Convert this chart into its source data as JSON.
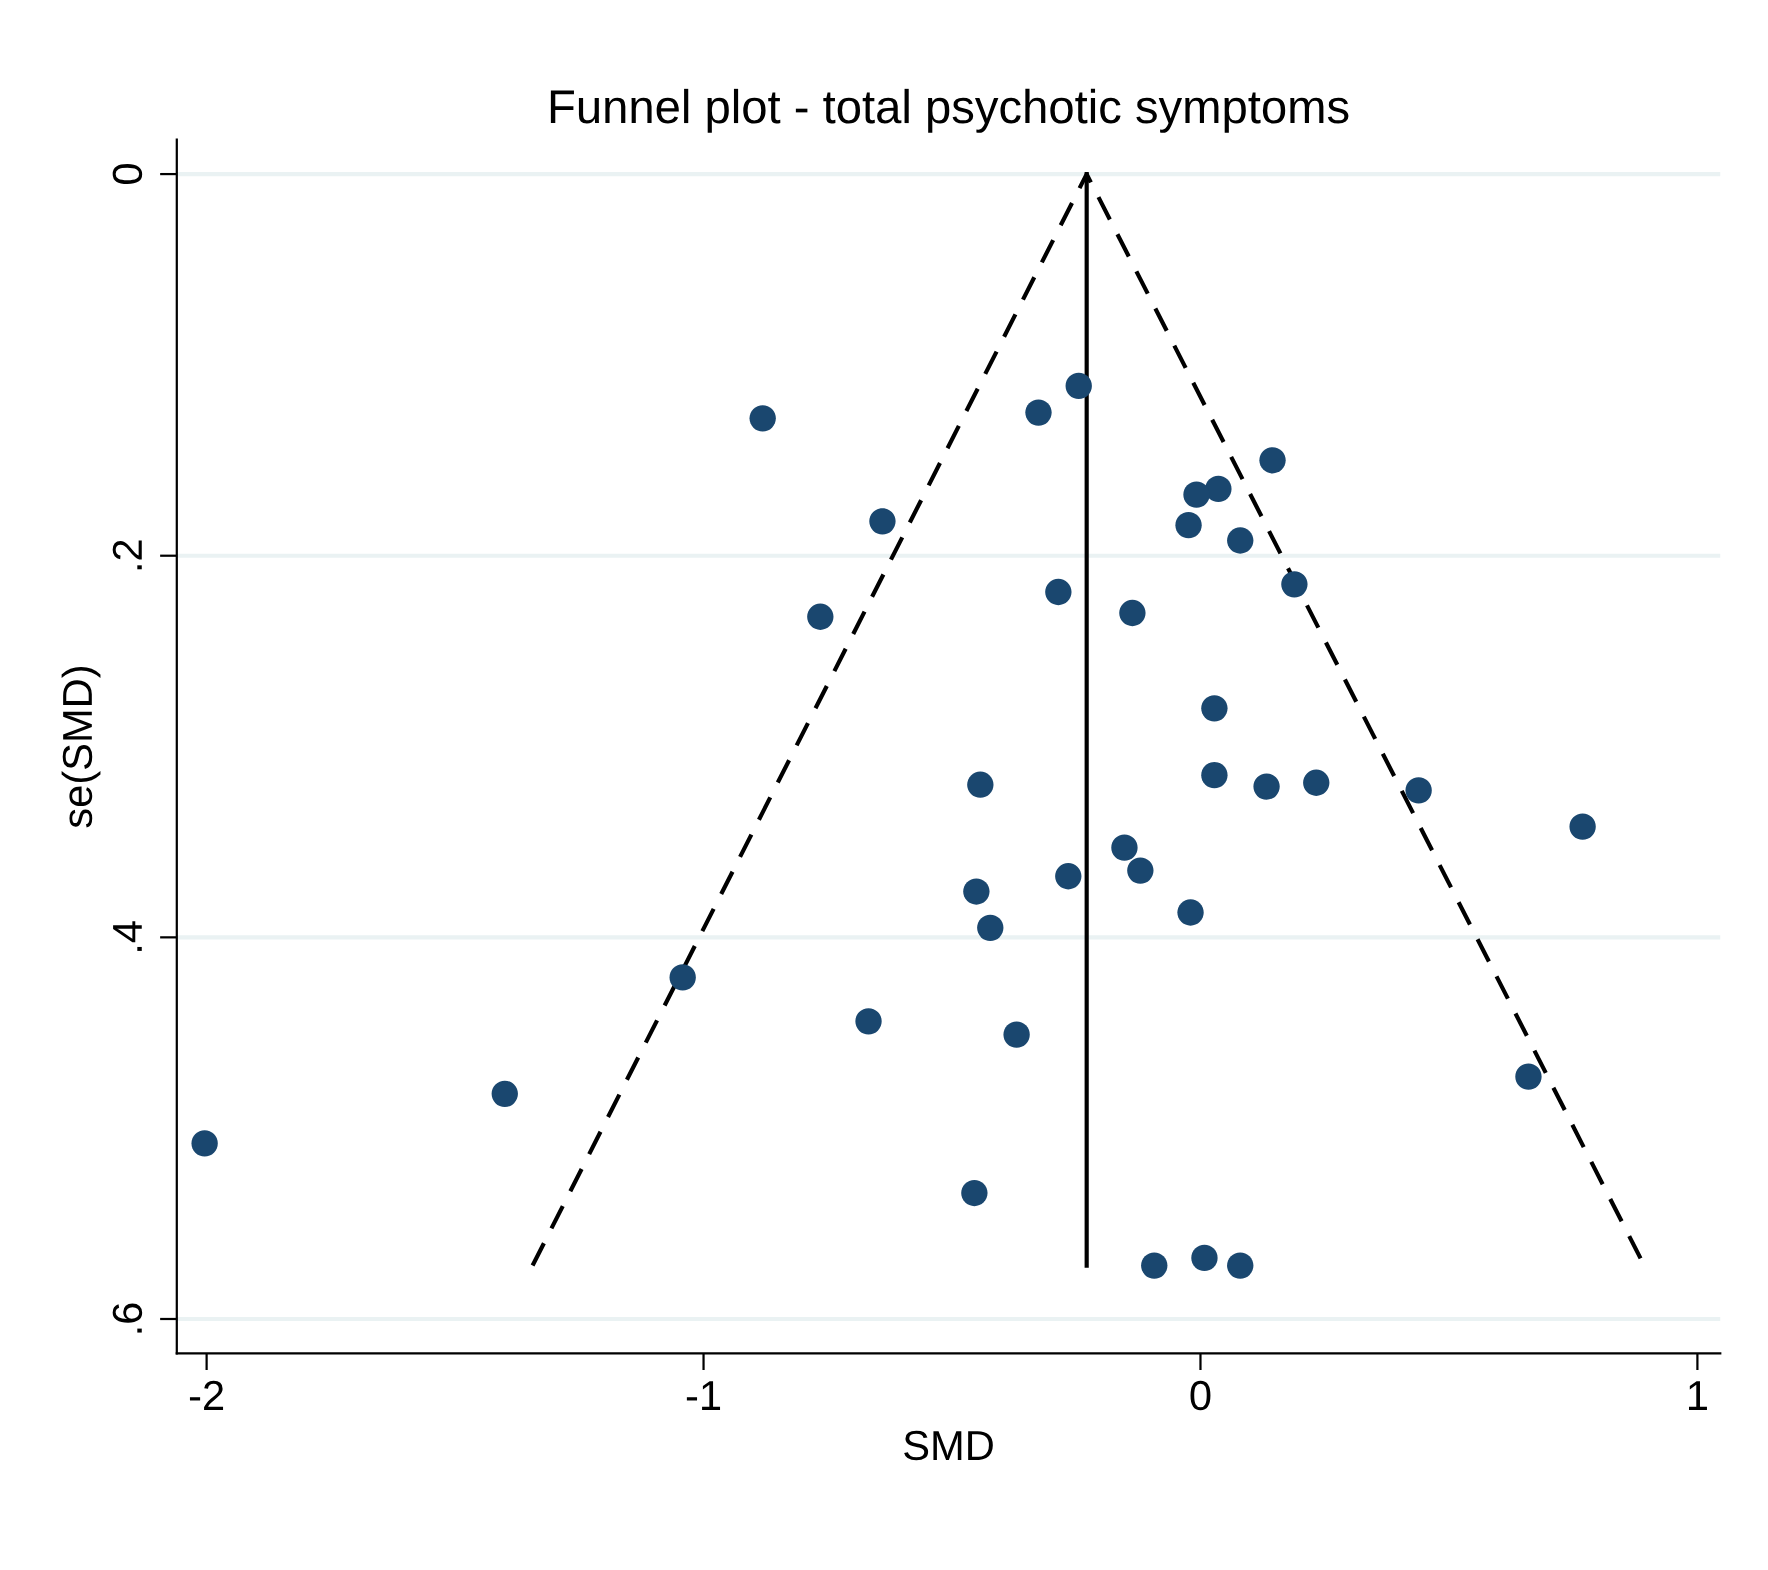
{
  "chart_data": {
    "type": "scatter",
    "title": "Funnel plot - total psychotic symptoms",
    "xlabel": "SMD",
    "ylabel": "se(SMD)",
    "xlim": [
      -2.06,
      1.046
    ],
    "xticks": [
      -2,
      -1,
      0,
      1
    ],
    "ylim": [
      0.618,
      -0.018
    ],
    "yticks": [
      {
        "value": 0,
        "label": "0"
      },
      {
        "value": 0.2,
        "label": ".2"
      },
      {
        "value": 0.4,
        "label": ".4"
      },
      {
        "value": 0.6,
        "label": ".6"
      }
    ],
    "grid": "y",
    "legend": false,
    "series": [
      {
        "marker": "circle",
        "color": "#1a476f",
        "x": [
          -0.245,
          -0.326,
          -0.881,
          0.145,
          0.036,
          -0.008,
          -0.64,
          -0.024,
          0.08,
          0.189,
          -0.286,
          -0.765,
          -0.137,
          0.028,
          -0.443,
          0.028,
          0.133,
          0.233,
          0.439,
          0.769,
          -0.153,
          -0.121,
          -0.266,
          -0.451,
          -0.423,
          -0.02,
          -1.042,
          -0.668,
          -0.37,
          0.66,
          -1.4,
          -2.004,
          -0.455,
          -0.093,
          0.008,
          0.08
        ],
        "values": [
          0.111,
          0.125,
          0.128,
          0.15,
          0.165,
          0.168,
          0.182,
          0.184,
          0.192,
          0.215,
          0.219,
          0.232,
          0.23,
          0.28,
          0.32,
          0.315,
          0.321,
          0.319,
          0.323,
          0.342,
          0.353,
          0.365,
          0.368,
          0.376,
          0.395,
          0.387,
          0.421,
          0.444,
          0.451,
          0.473,
          0.482,
          0.508,
          0.534,
          0.572,
          0.568,
          0.572
        ]
      },
      {
        "type": "line",
        "color": "#000000",
        "line_style": "dashed",
        "marker": "none",
        "x": [
          -1.344,
          -0.229,
          0.893
        ],
        "values": [
          0.572,
          0,
          0.572
        ]
      },
      {
        "type": "line",
        "color": "#000000",
        "line_style": "solid",
        "marker": "none",
        "x": [
          -0.229,
          -0.229
        ],
        "values": [
          0,
          0.572
        ]
      }
    ]
  }
}
